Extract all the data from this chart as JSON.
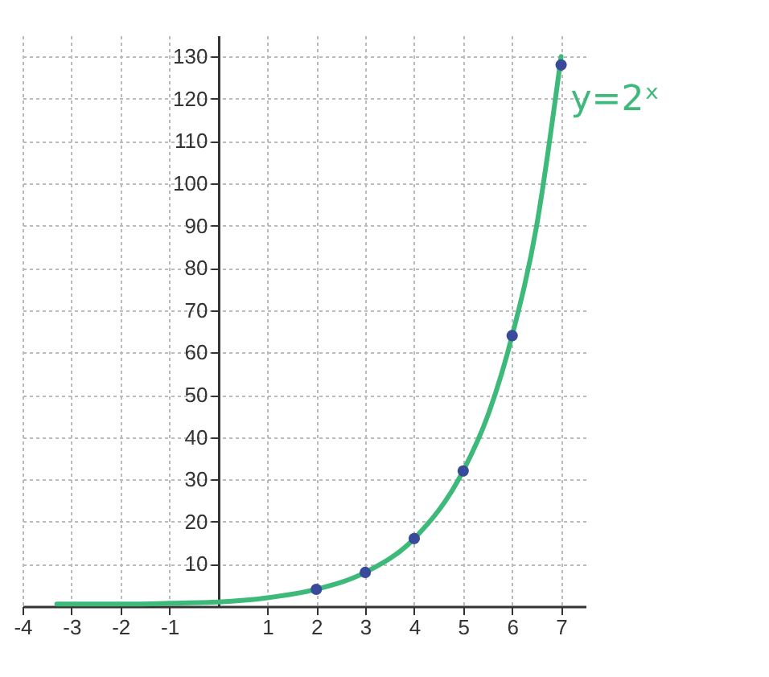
{
  "chart_data": {
    "type": "line",
    "xlim": [
      -4,
      7.5
    ],
    "ylim": [
      0,
      135
    ],
    "xticks": [
      -4,
      -3,
      -2,
      -1,
      1,
      2,
      3,
      4,
      5,
      6,
      7
    ],
    "yticks": [
      10,
      20,
      30,
      40,
      50,
      60,
      70,
      80,
      90,
      100,
      110,
      120,
      130
    ],
    "grid": true,
    "line_style": "solid",
    "marker": "none",
    "series": [
      {
        "type": "line",
        "color": "#3dba7a",
        "x": [
          -3.3,
          -2,
          -1,
          0,
          1,
          2,
          3,
          4,
          5,
          5.5,
          6,
          6.5,
          7
        ],
        "values": [
          0.5,
          0.5,
          0.7,
          1,
          2,
          4,
          8,
          16,
          32,
          45,
          64,
          90,
          130
        ]
      },
      {
        "type": "scatter",
        "marker": "circle",
        "color": "#3a4a9a",
        "x": [
          2,
          3,
          4,
          5,
          6,
          7
        ],
        "values": [
          4,
          8,
          16,
          32,
          64,
          128
        ]
      }
    ],
    "annotations": [
      {
        "text": "y=2ˣ",
        "x": 7,
        "y": 120
      }
    ]
  }
}
